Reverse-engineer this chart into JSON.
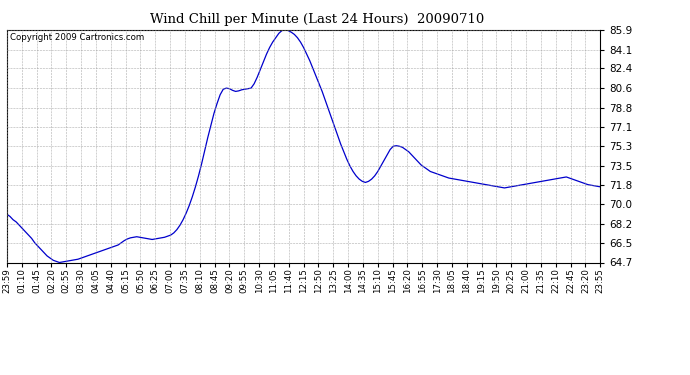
{
  "title": "Wind Chill per Minute (Last 24 Hours)  20090710",
  "copyright": "Copyright 2009 Cartronics.com",
  "line_color": "#0000CC",
  "background_color": "#ffffff",
  "plot_bg_color": "#ffffff",
  "grid_color": "#999999",
  "yticks": [
    64.7,
    66.5,
    68.2,
    70.0,
    71.8,
    73.5,
    75.3,
    77.1,
    78.8,
    80.6,
    82.4,
    84.1,
    85.9
  ],
  "ylim": [
    64.7,
    85.9
  ],
  "x_labels": [
    "23:59",
    "01:10",
    "01:45",
    "02:20",
    "02:55",
    "03:30",
    "04:05",
    "04:40",
    "05:15",
    "05:50",
    "06:25",
    "07:00",
    "07:35",
    "08:10",
    "08:45",
    "09:20",
    "09:55",
    "10:30",
    "11:05",
    "11:40",
    "12:15",
    "12:50",
    "13:25",
    "14:00",
    "14:35",
    "15:10",
    "15:45",
    "16:20",
    "16:55",
    "17:30",
    "18:05",
    "18:40",
    "19:15",
    "19:50",
    "20:25",
    "21:00",
    "21:35",
    "22:10",
    "22:45",
    "23:20",
    "23:55"
  ],
  "y_values": [
    69.1,
    68.9,
    68.6,
    68.4,
    68.1,
    67.8,
    67.5,
    67.2,
    66.9,
    66.5,
    66.2,
    65.9,
    65.6,
    65.3,
    65.1,
    64.9,
    64.8,
    64.7,
    64.75,
    64.8,
    64.85,
    64.9,
    64.95,
    65.0,
    65.1,
    65.2,
    65.3,
    65.4,
    65.5,
    65.6,
    65.7,
    65.8,
    65.9,
    66.0,
    66.1,
    66.2,
    66.3,
    66.5,
    66.7,
    66.85,
    66.95,
    67.0,
    67.05,
    67.0,
    66.95,
    66.9,
    66.85,
    66.8,
    66.85,
    66.9,
    66.95,
    67.0,
    67.1,
    67.2,
    67.4,
    67.7,
    68.1,
    68.6,
    69.2,
    69.9,
    70.7,
    71.6,
    72.6,
    73.7,
    74.9,
    76.1,
    77.2,
    78.3,
    79.2,
    80.0,
    80.5,
    80.6,
    80.55,
    80.4,
    80.3,
    80.35,
    80.45,
    80.5,
    80.55,
    80.6,
    81.0,
    81.6,
    82.3,
    83.0,
    83.7,
    84.3,
    84.8,
    85.2,
    85.6,
    85.85,
    85.9,
    85.85,
    85.7,
    85.5,
    85.2,
    84.8,
    84.3,
    83.7,
    83.1,
    82.4,
    81.7,
    81.0,
    80.3,
    79.5,
    78.7,
    77.9,
    77.1,
    76.3,
    75.5,
    74.8,
    74.1,
    73.5,
    73.0,
    72.6,
    72.3,
    72.1,
    72.0,
    72.1,
    72.3,
    72.6,
    73.0,
    73.5,
    74.0,
    74.5,
    75.0,
    75.3,
    75.35,
    75.3,
    75.2,
    75.0,
    74.8,
    74.5,
    74.2,
    73.9,
    73.6,
    73.4,
    73.2,
    73.0,
    72.9,
    72.8,
    72.7,
    72.6,
    72.5,
    72.4,
    72.35,
    72.3,
    72.25,
    72.2,
    72.15,
    72.1,
    72.05,
    72.0,
    71.95,
    71.9,
    71.85,
    71.8,
    71.75,
    71.7,
    71.65,
    71.6,
    71.55,
    71.5,
    71.55,
    71.6,
    71.65,
    71.7,
    71.75,
    71.8,
    71.85,
    71.9,
    71.95,
    72.0,
    72.05,
    72.1,
    72.15,
    72.2,
    72.25,
    72.3,
    72.35,
    72.4,
    72.45,
    72.5,
    72.4,
    72.3,
    72.2,
    72.1,
    72.0,
    71.9,
    71.8,
    71.75,
    71.7,
    71.65,
    71.6
  ]
}
